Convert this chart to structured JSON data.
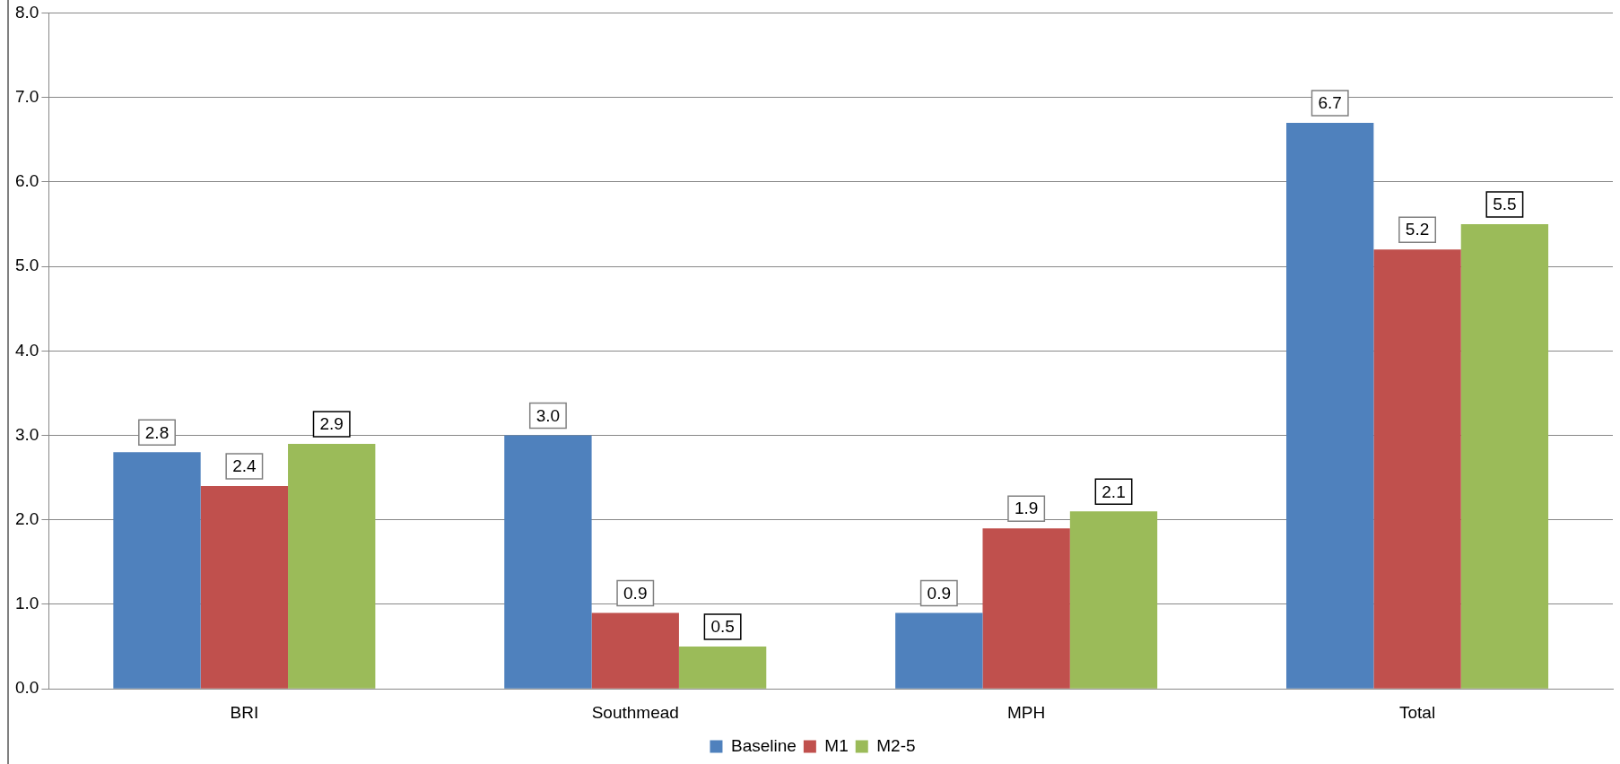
{
  "chart_data": {
    "type": "bar",
    "categories": [
      "BRI",
      "Southmead",
      "MPH",
      "Total"
    ],
    "series": [
      {
        "name": "Baseline",
        "color": "#4f81bd",
        "values": [
          2.8,
          3.0,
          0.9,
          6.7
        ],
        "value_labels": [
          "2.8",
          "3.0",
          "0.9",
          "6.7"
        ]
      },
      {
        "name": "M1",
        "color": "#c0504d",
        "values": [
          2.4,
          0.9,
          1.9,
          5.2
        ],
        "value_labels": [
          "2.4",
          "0.9",
          "1.9",
          "5.2"
        ]
      },
      {
        "name": "M2-5",
        "color": "#9bbb59",
        "values": [
          2.9,
          0.5,
          2.1,
          5.5
        ],
        "value_labels": [
          "2.9",
          "0.5",
          "2.1",
          "5.5"
        ]
      }
    ],
    "ylim": [
      0,
      8
    ],
    "yticks": [
      {
        "value": 0,
        "label": "0.0"
      },
      {
        "value": 1,
        "label": "1.0"
      },
      {
        "value": 2,
        "label": "2.0"
      },
      {
        "value": 3,
        "label": "3.0"
      },
      {
        "value": 4,
        "label": "4.0"
      },
      {
        "value": 5,
        "label": "5.0"
      },
      {
        "value": 6,
        "label": "6.0"
      },
      {
        "value": 7,
        "label": "7.0"
      },
      {
        "value": 8,
        "label": "8.0"
      }
    ],
    "grid": "y",
    "legend": "bottom"
  }
}
